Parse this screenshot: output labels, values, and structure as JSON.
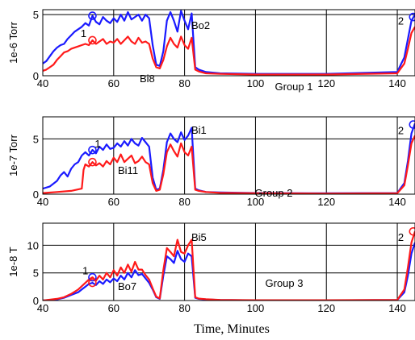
{
  "chart_data": {
    "type": "line",
    "xlabel": "Time, Minutes",
    "colors": {
      "upper": "#1a1aff",
      "lower": "#ff1a1a"
    },
    "panels": [
      {
        "group_label": "Group 1",
        "ylabel": "1e-6 Torr",
        "xlim": [
          40,
          145
        ],
        "ylim": [
          0,
          5.4
        ],
        "xticks": [
          40,
          60,
          80,
          100,
          120,
          140
        ],
        "yticks": [
          0,
          5
        ],
        "grid": true,
        "series": [
          {
            "color": "upper",
            "line_label": "Bo2",
            "x": [
              40,
              41,
              42,
              43,
              44,
              45,
              46,
              47,
              48,
              49,
              50,
              51,
              52,
              53,
              54,
              55,
              56,
              57,
              58,
              59,
              60,
              61,
              62,
              63,
              64,
              65,
              66,
              67,
              68,
              69,
              70,
              71,
              72,
              73,
              74,
              75,
              76,
              77,
              78,
              79,
              80,
              81,
              82,
              83,
              84,
              86,
              90,
              100,
              120,
              140,
              142,
              143,
              144,
              145
            ],
            "y": [
              1.0,
              1.2,
              1.6,
              2.0,
              2.3,
              2.5,
              2.6,
              3.0,
              3.3,
              3.6,
              3.8,
              4.0,
              4.3,
              4.1,
              4.9,
              4.4,
              4.2,
              4.8,
              4.5,
              4.3,
              4.7,
              4.4,
              5.0,
              4.5,
              5.2,
              4.6,
              4.8,
              5.0,
              4.5,
              5.0,
              4.7,
              2.5,
              0.9,
              0.8,
              2.0,
              4.5,
              5.2,
              4.5,
              3.6,
              5.3,
              4.5,
              3.8,
              5.1,
              0.7,
              0.5,
              0.3,
              0.2,
              0.15,
              0.15,
              0.3,
              1.5,
              3.0,
              4.5,
              5.0
            ]
          },
          {
            "color": "lower",
            "line_label": "Bi8",
            "x": [
              40,
              41,
              42,
              43,
              44,
              45,
              46,
              47,
              48,
              49,
              50,
              51,
              52,
              53,
              54,
              55,
              56,
              57,
              58,
              59,
              60,
              61,
              62,
              63,
              64,
              65,
              66,
              67,
              68,
              69,
              70,
              71,
              72,
              73,
              74,
              75,
              76,
              77,
              78,
              79,
              80,
              81,
              82,
              83,
              84,
              86,
              90,
              100,
              120,
              140,
              142,
              143,
              144,
              145
            ],
            "y": [
              0.4,
              0.5,
              0.7,
              0.9,
              1.3,
              1.6,
              1.9,
              2.0,
              2.2,
              2.3,
              2.4,
              2.5,
              2.6,
              2.5,
              2.9,
              2.6,
              2.8,
              3.0,
              2.6,
              2.8,
              2.7,
              3.0,
              2.6,
              2.9,
              3.2,
              2.8,
              2.6,
              3.1,
              2.7,
              2.8,
              2.6,
              1.4,
              0.7,
              0.6,
              1.3,
              2.4,
              3.1,
              2.6,
              2.3,
              3.2,
              2.5,
              2.2,
              3.1,
              0.5,
              0.35,
              0.2,
              0.15,
              0.1,
              0.1,
              0.2,
              1.0,
              2.2,
              3.5,
              4.0
            ]
          }
        ],
        "annotations": [
          {
            "text": "1",
            "x": 51.5,
            "y": 3.5
          },
          {
            "text": "2",
            "x": 141,
            "y": 4.5
          }
        ],
        "markers": [
          {
            "x": 54,
            "y": 4.9
          },
          {
            "x": 54,
            "y": 2.9
          },
          {
            "x": 144.5,
            "y": 4.8
          }
        ]
      },
      {
        "group_label": "Group 2",
        "ylabel": "1e-7 Torr",
        "xlim": [
          40,
          145
        ],
        "ylim": [
          0,
          7.0
        ],
        "xticks": [
          40,
          60,
          80,
          100,
          120,
          140
        ],
        "yticks": [
          0,
          5
        ],
        "grid": true,
        "series": [
          {
            "color": "upper",
            "line_label": "Bi1",
            "x": [
              40,
              42,
              44,
              45,
              46,
              47,
              48,
              49,
              50,
              51,
              52,
              53,
              54,
              55,
              56,
              57,
              58,
              59,
              60,
              61,
              62,
              63,
              64,
              65,
              66,
              67,
              68,
              69,
              70,
              71,
              72,
              73,
              74,
              75,
              76,
              77,
              78,
              79,
              80,
              81,
              82,
              83,
              84,
              86,
              90,
              100,
              120,
              140,
              142,
              143,
              144,
              145
            ],
            "y": [
              0.5,
              0.7,
              1.2,
              1.7,
              2.0,
              1.6,
              2.3,
              2.7,
              2.9,
              3.5,
              3.8,
              3.5,
              4.0,
              3.7,
              4.3,
              4.0,
              4.5,
              4.1,
              4.2,
              4.6,
              4.3,
              4.8,
              4.4,
              5.0,
              4.6,
              4.4,
              5.1,
              4.7,
              4.3,
              1.5,
              0.4,
              0.5,
              2.2,
              4.7,
              5.5,
              5.0,
              4.7,
              5.6,
              4.9,
              5.3,
              6.0,
              0.5,
              0.35,
              0.2,
              0.15,
              0.1,
              0.08,
              0.1,
              1.0,
              3.0,
              5.5,
              6.4
            ]
          },
          {
            "color": "lower",
            "line_label": "Bi11",
            "x": [
              40,
              44,
              48,
              51,
              51.5,
              52,
              53,
              54,
              55,
              56,
              57,
              58,
              59,
              60,
              61,
              62,
              63,
              64,
              65,
              66,
              67,
              68,
              69,
              70,
              71,
              72,
              73,
              74,
              75,
              76,
              77,
              78,
              79,
              80,
              81,
              82,
              83,
              84,
              86,
              90,
              100,
              120,
              140,
              142,
              143,
              144,
              145
            ],
            "y": [
              0.1,
              0.2,
              0.3,
              0.5,
              2.2,
              2.7,
              2.5,
              2.9,
              2.6,
              2.8,
              2.5,
              3.0,
              2.7,
              3.3,
              2.9,
              3.6,
              2.9,
              3.2,
              3.5,
              2.8,
              3.0,
              3.4,
              2.9,
              2.7,
              1.0,
              0.3,
              0.4,
              1.8,
              3.8,
              4.5,
              3.9,
              3.4,
              4.6,
              3.8,
              3.5,
              4.3,
              0.4,
              0.3,
              0.2,
              0.12,
              0.08,
              0.06,
              0.08,
              0.8,
              2.6,
              4.6,
              5.3
            ]
          }
        ],
        "annotations": [
          {
            "text": "1",
            "x": 55.5,
            "y": 4.6
          },
          {
            "text": "2",
            "x": 141,
            "y": 5.8
          }
        ],
        "markers": [
          {
            "x": 54,
            "y": 4.0
          },
          {
            "x": 54,
            "y": 2.9
          },
          {
            "x": 144.5,
            "y": 6.3
          }
        ]
      },
      {
        "group_label": "Group 3",
        "ylabel": "1e-8 T",
        "xlim": [
          40,
          145
        ],
        "ylim": [
          0,
          14.0
        ],
        "xticks": [
          40,
          60,
          80,
          100,
          120,
          140
        ],
        "yticks": [
          0,
          5,
          10
        ],
        "grid": true,
        "series": [
          {
            "color": "upper",
            "line_label": "Bi5",
            "x": [
              40,
              44,
              46,
              48,
              50,
              51,
              52,
              53,
              54,
              55,
              56,
              57,
              58,
              59,
              60,
              61,
              62,
              63,
              64,
              65,
              66,
              67,
              68,
              69,
              70,
              71,
              72,
              73,
              74,
              75,
              76,
              77,
              78,
              79,
              80,
              81,
              82,
              83,
              84,
              86,
              90,
              100,
              120,
              140,
              142,
              143,
              144,
              145
            ],
            "y": [
              0,
              0.2,
              0.5,
              1.0,
              1.5,
              2.0,
              2.5,
              3.0,
              3.2,
              2.8,
              3.5,
              3.0,
              3.8,
              3.3,
              4.0,
              3.5,
              4.5,
              3.8,
              5.0,
              4.2,
              5.5,
              4.6,
              4.8,
              4.0,
              3.2,
              2.0,
              0.6,
              0.3,
              4.5,
              8.0,
              7.5,
              6.8,
              9.0,
              7.5,
              7.0,
              8.5,
              8.0,
              0.5,
              0.3,
              0.2,
              0.1,
              0.05,
              0.05,
              0.1,
              1.5,
              4.5,
              8.5,
              10.5
            ]
          },
          {
            "color": "lower",
            "line_label": "Bo7",
            "x": [
              40,
              44,
              46,
              48,
              50,
              51,
              52,
              53,
              54,
              55,
              56,
              57,
              58,
              59,
              60,
              61,
              62,
              63,
              64,
              65,
              66,
              67,
              68,
              69,
              70,
              71,
              72,
              73,
              74,
              75,
              76,
              77,
              78,
              79,
              80,
              81,
              82,
              83,
              84,
              86,
              90,
              100,
              120,
              140,
              142,
              143,
              144,
              145
            ],
            "y": [
              0,
              0.3,
              0.6,
              1.2,
              2.0,
              2.6,
              3.2,
              3.8,
              4.2,
              3.6,
              4.5,
              3.8,
              5.0,
              4.2,
              5.5,
              4.5,
              6.0,
              5.0,
              6.5,
              5.2,
              7.0,
              5.6,
              5.6,
              4.6,
              3.8,
              2.2,
              0.7,
              0.4,
              5.5,
              9.5,
              8.8,
              8.0,
              11.0,
              8.8,
              8.5,
              10.0,
              11.0,
              0.6,
              0.35,
              0.25,
              0.12,
              0.06,
              0.06,
              0.12,
              2.0,
              6.0,
              10.5,
              12.5
            ]
          }
        ],
        "annotations": [
          {
            "text": "1",
            "x": 52,
            "y": 5.5
          },
          {
            "text": "2",
            "x": 141,
            "y": 11.5
          }
        ],
        "markers": [
          {
            "x": 54,
            "y": 4.2
          },
          {
            "x": 54,
            "y": 3.2
          },
          {
            "x": 144.5,
            "y": 12.5
          }
        ]
      }
    ]
  }
}
